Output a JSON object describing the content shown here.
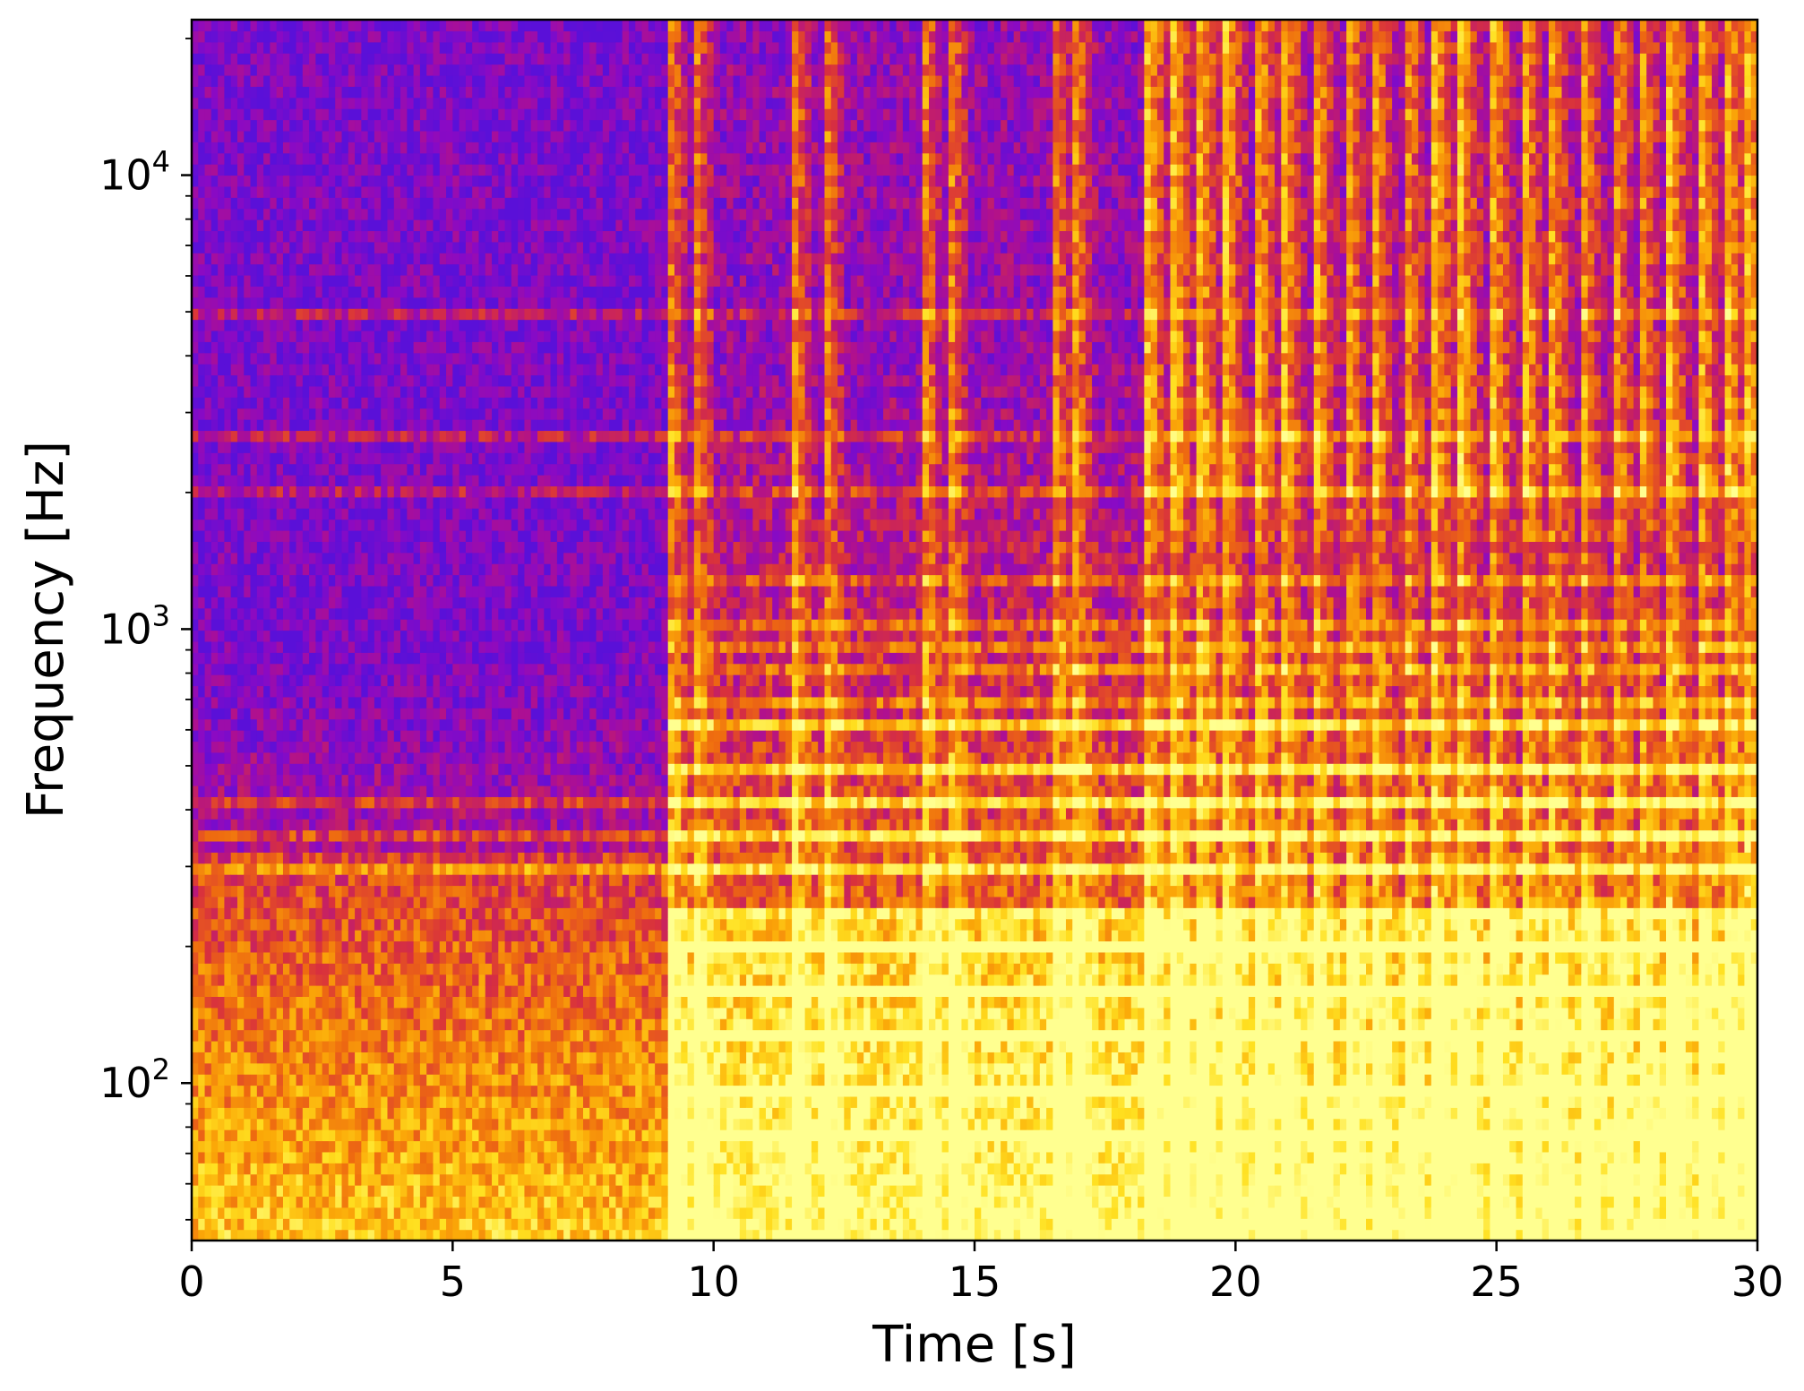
{
  "chart_data": {
    "type": "heatmap",
    "title": "",
    "xlabel": "Time [s]",
    "ylabel": "Frequency [Hz]",
    "xlim": [
      0,
      30
    ],
    "ylim": [
      45,
      22000
    ],
    "y_scale": "log",
    "colormap": "plasma-like (blue-violet → red → orange → yellow)",
    "colormap_stops": [
      "#5a10d8",
      "#8a0ac4",
      "#b0108e",
      "#d8303e",
      "#ee6a10",
      "#fba808",
      "#ffe020",
      "#ffff90"
    ],
    "grid": false,
    "x_ticks": [
      {
        "value": 0,
        "label": "0"
      },
      {
        "value": 5,
        "label": "5"
      },
      {
        "value": 10,
        "label": "10"
      },
      {
        "value": 15,
        "label": "15"
      },
      {
        "value": 20,
        "label": "20"
      },
      {
        "value": 25,
        "label": "25"
      },
      {
        "value": 30,
        "label": "30"
      }
    ],
    "y_ticks": [
      {
        "value": 100,
        "base": "10",
        "exp": "2"
      },
      {
        "value": 1000,
        "base": "10",
        "exp": "3"
      },
      {
        "value": 10000,
        "base": "10",
        "exp": "4"
      }
    ],
    "segments": [
      {
        "start": 0,
        "end": 9.1,
        "character": "low-level noise with faint harmonic lines"
      },
      {
        "start": 9.1,
        "end": 11.5,
        "character": "dense tonal harmonics"
      },
      {
        "start": 11.5,
        "end": 14.0,
        "character": "dense tonal harmonics"
      },
      {
        "start": 14.0,
        "end": 16.5,
        "character": "dense tonal harmonics"
      },
      {
        "start": 16.5,
        "end": 18.3,
        "character": "dense tonal harmonics"
      },
      {
        "start": 18.3,
        "end": 30,
        "character": "broadband percussive with harmonics"
      }
    ],
    "onsets": [
      9.1,
      9.6,
      11.5,
      12.1,
      14.0,
      14.5,
      16.5,
      16.9,
      18.3,
      18.8,
      19.3,
      19.8,
      20.4,
      20.9,
      21.5,
      22.1,
      22.6,
      23.2,
      23.8,
      24.3,
      24.9,
      25.5,
      26.0,
      26.6,
      27.2,
      27.7,
      28.3,
      28.9,
      29.4,
      29.8
    ],
    "harmonic_lines_hz": [
      75,
      98,
      130,
      160,
      195,
      240,
      300,
      350,
      420,
      500,
      600,
      700,
      800,
      900,
      1000,
      1300,
      2000,
      2700,
      5000
    ]
  }
}
